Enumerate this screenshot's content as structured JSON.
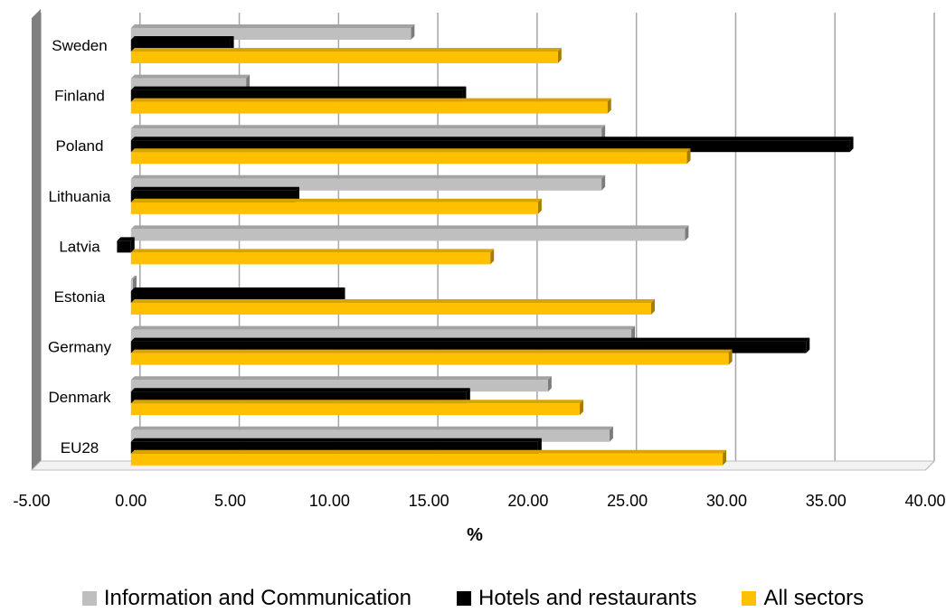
{
  "chart_data": {
    "type": "bar",
    "orientation": "horizontal",
    "style": "3d",
    "categories": [
      "Sweden",
      "Finland",
      "Poland",
      "Lithuania",
      "Latvia",
      "Estonia",
      "Germany",
      "Denmark",
      "EU28"
    ],
    "series": [
      {
        "name": "Information and Communication",
        "color": "#BFBFBF",
        "values": [
          14.1,
          5.8,
          23.7,
          23.7,
          27.9,
          0.1,
          25.2,
          21.0,
          24.1
        ]
      },
      {
        "name": "Hotels and restaurants",
        "color": "#000000",
        "values": [
          5.0,
          16.7,
          36.2,
          8.3,
          -0.7,
          10.6,
          34.0,
          16.9,
          20.5
        ]
      },
      {
        "name": "All sectors",
        "color": "#FFC000",
        "values": [
          21.5,
          24.0,
          28.0,
          20.5,
          18.1,
          26.2,
          30.1,
          22.6,
          29.8
        ]
      }
    ],
    "xlabel": "%",
    "ylabel": "",
    "xlim": [
      -5,
      40
    ],
    "xticks": [
      "-5.00",
      "0.00",
      "5.00",
      "10.00",
      "15.00",
      "20.00",
      "25.00",
      "30.00",
      "35.00",
      "40.00"
    ],
    "grid": "vertical",
    "legend_position": "bottom"
  }
}
